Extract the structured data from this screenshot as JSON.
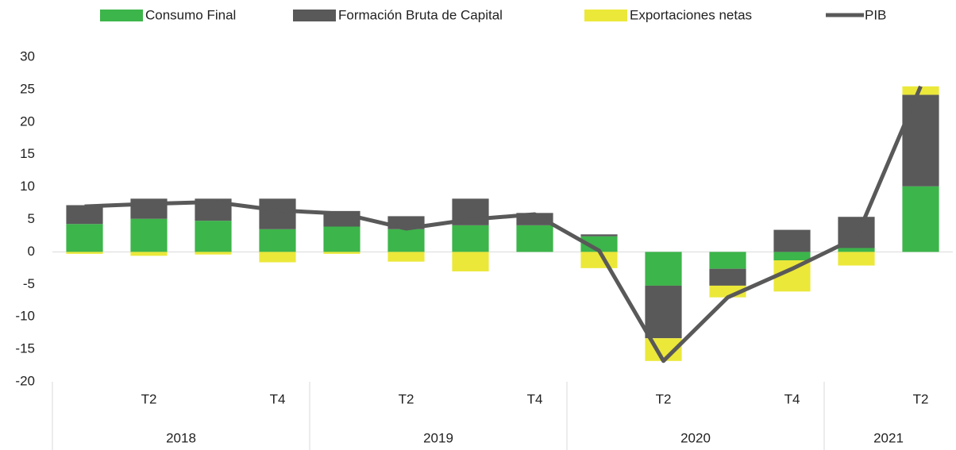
{
  "chart_data": {
    "type": "stacked-bar-line",
    "categories": [
      null,
      "T2",
      null,
      "T4",
      null,
      "T2",
      null,
      "T4",
      null,
      "T2",
      null,
      "T4",
      null,
      "T2"
    ],
    "x_groups": [
      {
        "label": "2018",
        "count": 4
      },
      {
        "label": "2019",
        "count": 4
      },
      {
        "label": "2020",
        "count": 4
      },
      {
        "label": "2021",
        "count": 2
      }
    ],
    "series": [
      {
        "name": "Consumo Final",
        "kind": "bar",
        "color": "#3cb54a",
        "values": [
          4.3,
          5.1,
          4.8,
          3.5,
          3.9,
          3.5,
          4.1,
          4.1,
          2.4,
          -5.2,
          -2.6,
          -1.3,
          0.6,
          10.1
        ]
      },
      {
        "name": "Formación Bruta de Capital",
        "kind": "bar",
        "color": "#595959",
        "values": [
          2.9,
          3.1,
          3.4,
          4.7,
          2.4,
          2.0,
          4.1,
          1.9,
          0.3,
          -8.1,
          -2.6,
          3.4,
          4.8,
          14.1
        ]
      },
      {
        "name": "Exportaciones netas",
        "kind": "bar",
        "color": "#ebe83a",
        "values": [
          -0.3,
          -0.6,
          -0.4,
          -1.6,
          -0.3,
          -1.5,
          -3.0,
          0,
          -2.5,
          -3.5,
          -1.8,
          -4.8,
          -2.1,
          1.3
        ]
      },
      {
        "name": "PIB",
        "kind": "line",
        "color": "#595959",
        "values": [
          7.0,
          7.4,
          7.7,
          6.4,
          5.9,
          3.6,
          5.0,
          5.8,
          0.2,
          -16.8,
          -7.0,
          -2.6,
          2.2,
          25.5
        ]
      }
    ],
    "ylim": [
      -20,
      30
    ],
    "yticks": [
      -20,
      -15,
      -10,
      -5,
      0,
      5,
      10,
      15,
      20,
      25,
      30
    ],
    "grid": false
  }
}
